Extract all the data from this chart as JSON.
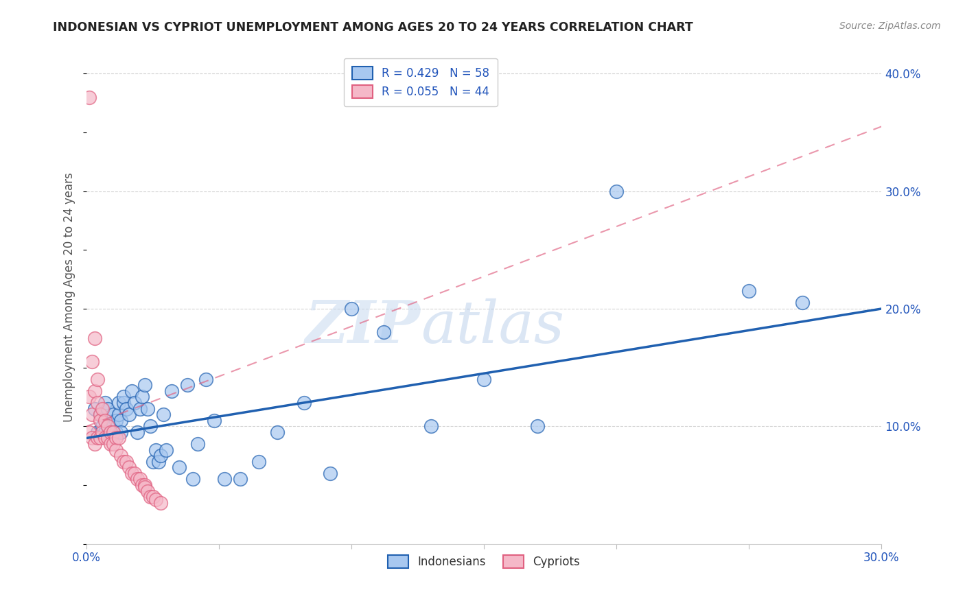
{
  "title": "INDONESIAN VS CYPRIOT UNEMPLOYMENT AMONG AGES 20 TO 24 YEARS CORRELATION CHART",
  "source": "Source: ZipAtlas.com",
  "ylabel": "Unemployment Among Ages 20 to 24 years",
  "xlim": [
    0.0,
    0.3
  ],
  "ylim": [
    0.0,
    0.42
  ],
  "indonesian_R": 0.429,
  "indonesian_N": 58,
  "cypriot_R": 0.055,
  "cypriot_N": 44,
  "indonesian_color": "#a8c8f0",
  "cypriot_color": "#f5b8c8",
  "indonesian_line_color": "#2060b0",
  "cypriot_line_color": "#e06080",
  "background_color": "#ffffff",
  "grid_color": "#c8c8c8",
  "indonesian_x": [
    0.003,
    0.004,
    0.005,
    0.006,
    0.007,
    0.007,
    0.008,
    0.008,
    0.009,
    0.009,
    0.01,
    0.01,
    0.01,
    0.011,
    0.011,
    0.012,
    0.012,
    0.013,
    0.013,
    0.014,
    0.014,
    0.015,
    0.016,
    0.017,
    0.018,
    0.019,
    0.02,
    0.021,
    0.022,
    0.023,
    0.024,
    0.025,
    0.026,
    0.027,
    0.028,
    0.029,
    0.03,
    0.032,
    0.035,
    0.038,
    0.04,
    0.042,
    0.045,
    0.048,
    0.052,
    0.058,
    0.065,
    0.072,
    0.082,
    0.092,
    0.1,
    0.112,
    0.13,
    0.15,
    0.17,
    0.2,
    0.25,
    0.27
  ],
  "indonesian_y": [
    0.115,
    0.095,
    0.11,
    0.1,
    0.12,
    0.095,
    0.115,
    0.1,
    0.1,
    0.095,
    0.1,
    0.11,
    0.095,
    0.105,
    0.095,
    0.11,
    0.12,
    0.105,
    0.095,
    0.12,
    0.125,
    0.115,
    0.11,
    0.13,
    0.12,
    0.095,
    0.115,
    0.125,
    0.135,
    0.115,
    0.1,
    0.07,
    0.08,
    0.07,
    0.075,
    0.11,
    0.08,
    0.13,
    0.065,
    0.135,
    0.055,
    0.085,
    0.14,
    0.105,
    0.055,
    0.055,
    0.07,
    0.095,
    0.12,
    0.06,
    0.2,
    0.18,
    0.1,
    0.14,
    0.1,
    0.3,
    0.215,
    0.205
  ],
  "cypriot_x": [
    0.001,
    0.001,
    0.001,
    0.002,
    0.002,
    0.002,
    0.003,
    0.003,
    0.003,
    0.004,
    0.004,
    0.004,
    0.005,
    0.005,
    0.005,
    0.006,
    0.006,
    0.007,
    0.007,
    0.008,
    0.008,
    0.009,
    0.009,
    0.01,
    0.01,
    0.011,
    0.011,
    0.012,
    0.013,
    0.014,
    0.015,
    0.016,
    0.017,
    0.018,
    0.019,
    0.02,
    0.021,
    0.022,
    0.022,
    0.023,
    0.024,
    0.025,
    0.026,
    0.028
  ],
  "cypriot_y": [
    0.38,
    0.125,
    0.095,
    0.155,
    0.11,
    0.09,
    0.175,
    0.13,
    0.085,
    0.12,
    0.14,
    0.09,
    0.11,
    0.105,
    0.09,
    0.115,
    0.095,
    0.105,
    0.09,
    0.1,
    0.09,
    0.095,
    0.085,
    0.095,
    0.085,
    0.09,
    0.08,
    0.09,
    0.075,
    0.07,
    0.07,
    0.065,
    0.06,
    0.06,
    0.055,
    0.055,
    0.05,
    0.05,
    0.048,
    0.045,
    0.04,
    0.04,
    0.038,
    0.035
  ],
  "indo_trend_x0": 0.0,
  "indo_trend_y0": 0.09,
  "indo_trend_x1": 0.3,
  "indo_trend_y1": 0.2,
  "cyp_trend_x0": 0.0,
  "cyp_trend_y0": 0.1,
  "cyp_trend_x1": 0.3,
  "cyp_trend_y1": 0.355,
  "watermark_zip": "ZIP",
  "watermark_atlas": "atlas",
  "legend_label_color": "#2255bb"
}
